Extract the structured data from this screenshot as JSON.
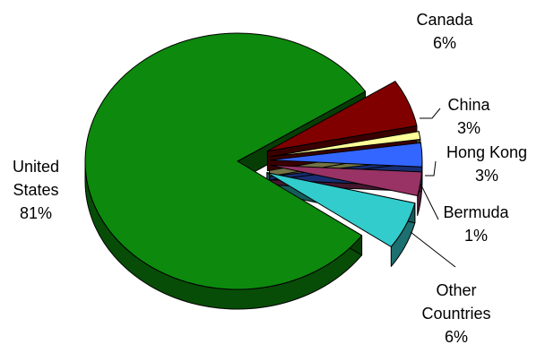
{
  "chart_data": {
    "type": "pie",
    "style": "3d-exploded",
    "slices": [
      {
        "name": "United States",
        "label_lines": [
          "United",
          "States",
          "81%"
        ],
        "value": 81,
        "color": "#0d8a0d"
      },
      {
        "name": "Canada",
        "label_lines": [
          "Canada",
          "6%"
        ],
        "value": 6,
        "color": "#33cccc"
      },
      {
        "name": "China",
        "label_lines": [
          "China",
          "3%"
        ],
        "value": 3,
        "color": "#993366"
      },
      {
        "name": "Hong Kong",
        "label_lines": [
          "Hong Kong",
          "3%"
        ],
        "value": 3,
        "color": "#3366ff"
      },
      {
        "name": "Bermuda",
        "label_lines": [
          "Bermuda",
          "1%"
        ],
        "value": 1,
        "color": "#ffff99"
      },
      {
        "name": "Other Countries",
        "label_lines": [
          "Other",
          "Countries",
          "6%"
        ],
        "value": 6,
        "color": "#800000"
      }
    ]
  }
}
